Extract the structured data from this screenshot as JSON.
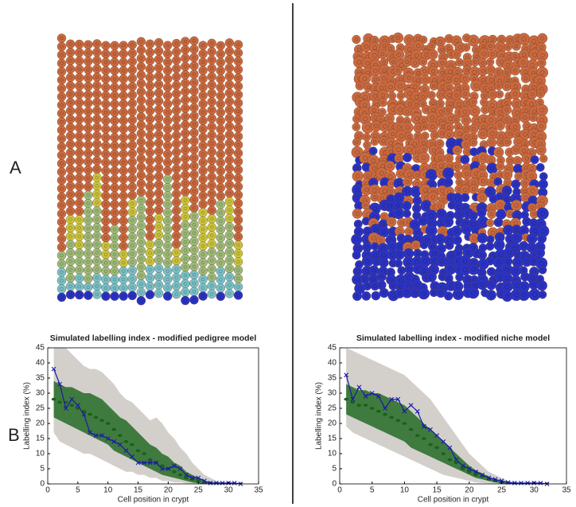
{
  "panel_labels": [
    "A",
    "B"
  ],
  "chart_data": [
    {
      "type": "line",
      "title": "Simulated labelling index - modified pedigree model",
      "xlabel": "Cell position in crypt",
      "ylabel": "Labelling index (%)",
      "x": [
        1,
        2,
        3,
        4,
        5,
        6,
        7,
        8,
        9,
        10,
        11,
        12,
        13,
        14,
        15,
        16,
        17,
        18,
        19,
        20,
        21,
        22,
        23,
        24,
        25,
        26,
        27,
        28,
        29,
        30,
        31,
        32
      ],
      "xlim": [
        0,
        35
      ],
      "xticks": [
        0,
        5,
        10,
        15,
        20,
        25,
        30,
        35
      ],
      "ylim": [
        0,
        45
      ],
      "yticks": [
        0,
        5,
        10,
        15,
        20,
        25,
        30,
        35,
        40,
        45
      ],
      "series": [
        {
          "style": "band",
          "color": "#d3d0cb",
          "lower": [
            17,
            14,
            13,
            12,
            11,
            10,
            10,
            9,
            8,
            7,
            6,
            5,
            4,
            4,
            3,
            3,
            2,
            2,
            1,
            1,
            0.5,
            0.5,
            0.2,
            0,
            0,
            0,
            0,
            0,
            0,
            0,
            0,
            0
          ],
          "upper": [
            45,
            45,
            45,
            43,
            41,
            39,
            38,
            38,
            37,
            35,
            33,
            30,
            28,
            27,
            25,
            23,
            21,
            22,
            20,
            17,
            15,
            12,
            10,
            7,
            5,
            3,
            2,
            1,
            0.5,
            0.3,
            0.2,
            0
          ]
        },
        {
          "style": "band",
          "color": "#3f7a3f",
          "lower": [
            22,
            21,
            20,
            19,
            18,
            17,
            16,
            15,
            14,
            13,
            11,
            10,
            9,
            8,
            7,
            6,
            5,
            4,
            3,
            2.5,
            2,
            1.5,
            1,
            0.5,
            0.2,
            0,
            0,
            0,
            0,
            0,
            0,
            0
          ],
          "upper": [
            34,
            33,
            32,
            32,
            31,
            30,
            30,
            29,
            28,
            26,
            24,
            22,
            21,
            19,
            17,
            15,
            13,
            12,
            10,
            9,
            7,
            6,
            4,
            3,
            2,
            1,
            0.5,
            0.3,
            0.2,
            0.1,
            0.1,
            0
          ]
        },
        {
          "style": "dots",
          "color": "#176217",
          "values": [
            28,
            27,
            27,
            26,
            25,
            24,
            23,
            22,
            21,
            20,
            18,
            16,
            14,
            13,
            11,
            10,
            8,
            7,
            6,
            5,
            4,
            3,
            2,
            1.5,
            1,
            0.5,
            0.3,
            0.2,
            0.1,
            0.1,
            0.1,
            0
          ]
        },
        {
          "style": "line",
          "color": "#1a1aa8",
          "values": [
            38,
            33,
            25,
            28,
            26,
            23,
            17,
            16,
            16,
            15,
            14,
            13,
            11,
            9,
            7,
            7,
            7,
            7,
            5,
            5,
            6,
            5,
            3,
            2,
            2,
            1,
            0.3,
            0.3,
            0.3,
            0.3,
            0.3,
            0
          ]
        }
      ]
    },
    {
      "type": "line",
      "title": "Simulated labelling index - modified niche model",
      "xlabel": "Cell position in crypt",
      "ylabel": "Labelling index (%)",
      "x": [
        1,
        2,
        3,
        4,
        5,
        6,
        7,
        8,
        9,
        10,
        11,
        12,
        13,
        14,
        15,
        16,
        17,
        18,
        19,
        20,
        21,
        22,
        23,
        24,
        25,
        26,
        27,
        28,
        29,
        30,
        31,
        32
      ],
      "xlim": [
        0,
        35
      ],
      "xticks": [
        0,
        5,
        10,
        15,
        20,
        25,
        30,
        35
      ],
      "ylim": [
        0,
        45
      ],
      "yticks": [
        0,
        5,
        10,
        15,
        20,
        25,
        30,
        35,
        40,
        45
      ],
      "series": [
        {
          "style": "band",
          "color": "#d3d0cb",
          "lower": [
            19,
            17,
            16,
            15,
            14,
            13,
            12,
            11,
            10,
            9,
            8,
            7,
            6,
            5,
            4,
            3,
            2.5,
            2,
            1.5,
            1,
            0.5,
            0.3,
            0.2,
            0,
            0,
            0,
            0,
            0,
            0,
            0,
            0,
            0
          ],
          "upper": [
            45,
            44,
            43,
            42,
            41,
            40,
            39,
            38,
            37,
            36,
            34,
            32,
            30,
            28,
            25,
            22,
            19,
            16,
            13,
            10,
            8,
            6,
            4,
            3,
            2,
            1,
            0.5,
            0.3,
            0.2,
            0.1,
            0.1,
            0
          ]
        },
        {
          "style": "band",
          "color": "#3f7a3f",
          "lower": [
            23,
            22,
            21,
            20,
            19,
            18,
            17,
            16,
            15,
            14,
            12,
            11,
            10,
            9,
            8,
            7,
            6,
            5,
            4,
            3,
            2,
            1.5,
            1,
            0.5,
            0.2,
            0,
            0,
            0,
            0,
            0,
            0,
            0
          ],
          "upper": [
            33,
            32,
            31,
            31,
            30,
            30,
            29,
            28,
            27,
            26,
            24,
            22,
            20,
            18,
            16,
            14,
            12,
            10,
            8,
            6,
            4.5,
            3.5,
            2.5,
            1.5,
            1,
            0.5,
            0.3,
            0.2,
            0.1,
            0.1,
            0.1,
            0
          ]
        },
        {
          "style": "dots",
          "color": "#176217",
          "values": [
            28,
            27,
            26,
            26,
            25,
            24,
            23,
            22,
            21,
            20,
            18,
            16,
            15,
            13,
            12,
            10,
            8,
            7,
            5,
            4,
            3,
            2.5,
            1.5,
            1,
            0.5,
            0.3,
            0.2,
            0.1,
            0.1,
            0.1,
            0.1,
            0
          ]
        },
        {
          "style": "line",
          "color": "#1a1aa8",
          "values": [
            36,
            28,
            32,
            29,
            30,
            29,
            25,
            28,
            28,
            24,
            26,
            24,
            19,
            18,
            16,
            14,
            12,
            8,
            6,
            5,
            4,
            3,
            2,
            1.5,
            1,
            0.5,
            0.3,
            0.3,
            0.3,
            0.3,
            0.3,
            0
          ]
        }
      ]
    }
  ]
}
